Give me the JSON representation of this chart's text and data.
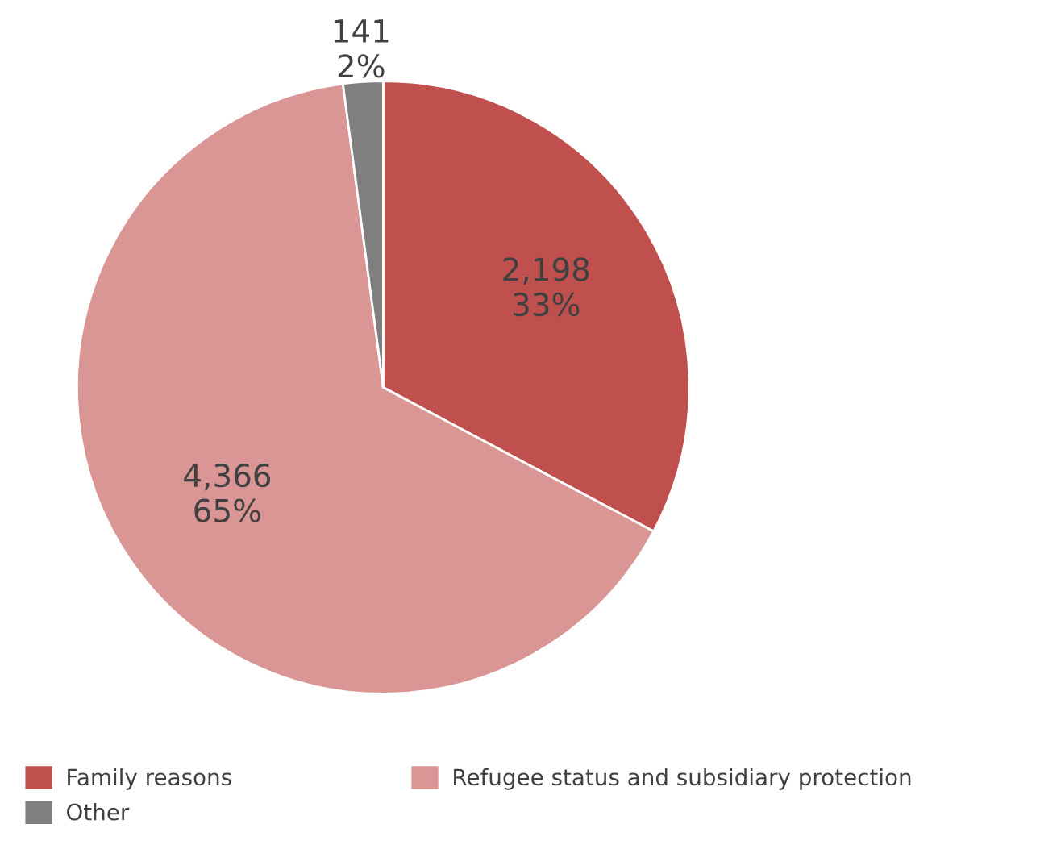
{
  "chart_data": {
    "type": "pie",
    "categories": [
      "Family reasons",
      "Refugee status and subsidiary protection",
      "Other"
    ],
    "values": [
      2198,
      4366,
      141
    ],
    "colors": [
      "#c0504d",
      "#d99694",
      "#7f7f7f"
    ],
    "value_labels": [
      "2,198\n33%",
      "4,366\n65%",
      "141\n2%"
    ],
    "legend": "bottom"
  }
}
